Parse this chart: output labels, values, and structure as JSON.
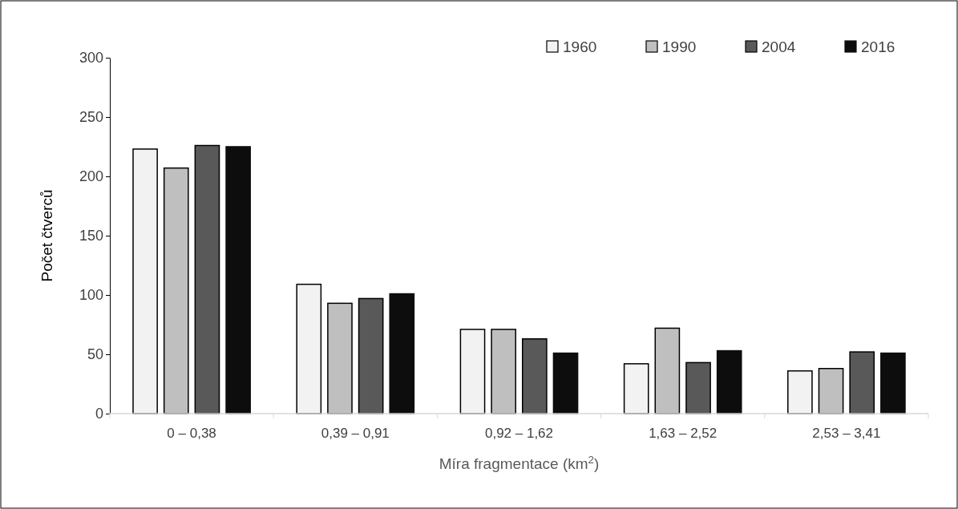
{
  "chart_data": {
    "type": "bar",
    "xlabel": "Míra fragmentace (km$^{2}$)",
    "ylabel": "Počet čtverců",
    "categories": [
      "0 – 0,38",
      "0,39 – 0,91",
      "0,92 – 1,62",
      "1,63 – 2,52",
      "2,53 – 3,41"
    ],
    "series": [
      {
        "name": "1960",
        "color": "#f2f2f2",
        "values": [
          223,
          109,
          71,
          42,
          36
        ]
      },
      {
        "name": "1990",
        "color": "#bfbfbf",
        "values": [
          207,
          93,
          71,
          72,
          38
        ]
      },
      {
        "name": "2004",
        "color": "#595959",
        "values": [
          226,
          97,
          63,
          43,
          52
        ]
      },
      {
        "name": "2016",
        "color": "#0d0d0d",
        "values": [
          225,
          101,
          51,
          53,
          51
        ]
      }
    ],
    "ylim": [
      0,
      300
    ],
    "yticks": [
      0,
      50,
      100,
      150,
      200,
      250,
      300
    ],
    "grid": false,
    "legend": "top right"
  }
}
